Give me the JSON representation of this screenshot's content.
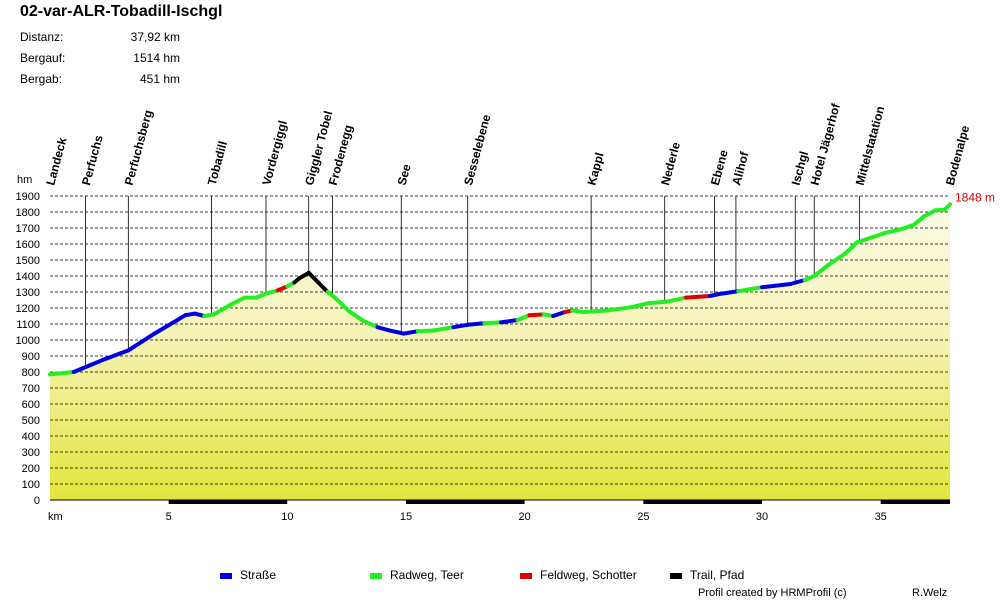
{
  "title": "02-var-ALR-Tobadill-Ischgl",
  "stats": [
    {
      "label": "Distanz:",
      "value": "37,92 km"
    },
    {
      "label": "Bergauf:",
      "value": "1514 hm"
    },
    {
      "label": "Bergab:",
      "value": "451 hm"
    }
  ],
  "legend": [
    {
      "label": "Straße",
      "color": "#0000dd"
    },
    {
      "label": "Radweg, Teer",
      "color": "#22ee22"
    },
    {
      "label": "Feldweg, Schotter",
      "color": "#dd0000"
    },
    {
      "label": "Trail, Pfad",
      "color": "#000000"
    }
  ],
  "credits": {
    "left": "Profil created by HRMProfil (c)",
    "right": "R.Welz"
  },
  "chart_data": {
    "type": "area",
    "ylabel": "hm",
    "xlabel": "km",
    "xlim": [
      0,
      37.92
    ],
    "ylim": [
      0,
      1900
    ],
    "x_ticks": [
      5,
      10,
      15,
      20,
      25,
      30,
      35
    ],
    "y_ticks": [
      0,
      100,
      200,
      300,
      400,
      500,
      600,
      700,
      800,
      900,
      1000,
      1100,
      1200,
      1300,
      1400,
      1500,
      1600,
      1700,
      1800,
      1900
    ],
    "grid": true,
    "end_label": "1848 m",
    "waypoints": [
      {
        "name": "Landeck",
        "km": 0.0
      },
      {
        "name": "Perfuchs",
        "km": 1.5
      },
      {
        "name": "Perfuchsberg",
        "km": 3.3
      },
      {
        "name": "Tobadill",
        "km": 6.8
      },
      {
        "name": "Vordergiggl",
        "km": 9.1
      },
      {
        "name": "Giggler Tobel",
        "km": 10.9
      },
      {
        "name": "Frodenegg",
        "km": 11.9
      },
      {
        "name": "See",
        "km": 14.8
      },
      {
        "name": "Sesselebene",
        "km": 17.6
      },
      {
        "name": "Kappl",
        "km": 22.8
      },
      {
        "name": "Nederle",
        "km": 25.9
      },
      {
        "name": "Ebene",
        "km": 28.0
      },
      {
        "name": "Alihof",
        "km": 28.9
      },
      {
        "name": "Ischgl",
        "km": 31.4
      },
      {
        "name": "Hotel Jägerhof",
        "km": 32.2
      },
      {
        "name": "Mittelstatation",
        "km": 34.1
      },
      {
        "name": "Bodenalpe",
        "km": 37.9
      }
    ],
    "profile": [
      {
        "km": 0.0,
        "alt": 785,
        "s": "road"
      },
      {
        "km": 1.0,
        "alt": 800,
        "s": "bike"
      },
      {
        "km": 2.3,
        "alt": 880,
        "s": "road"
      },
      {
        "km": 3.3,
        "alt": 935,
        "s": "road"
      },
      {
        "km": 4.4,
        "alt": 1040,
        "s": "road"
      },
      {
        "km": 5.2,
        "alt": 1110,
        "s": "road"
      },
      {
        "km": 5.7,
        "alt": 1155,
        "s": "road"
      },
      {
        "km": 6.1,
        "alt": 1165,
        "s": "road"
      },
      {
        "km": 6.5,
        "alt": 1150,
        "s": "road"
      },
      {
        "km": 6.9,
        "alt": 1160,
        "s": "bike"
      },
      {
        "km": 7.6,
        "alt": 1220,
        "s": "bike"
      },
      {
        "km": 8.2,
        "alt": 1265,
        "s": "bike"
      },
      {
        "km": 8.7,
        "alt": 1265,
        "s": "bike"
      },
      {
        "km": 9.1,
        "alt": 1290,
        "s": "bike"
      },
      {
        "km": 9.6,
        "alt": 1310,
        "s": "bike"
      },
      {
        "km": 10.0,
        "alt": 1335,
        "s": "gravel"
      },
      {
        "km": 10.3,
        "alt": 1360,
        "s": "bike"
      },
      {
        "km": 10.5,
        "alt": 1385,
        "s": "trail"
      },
      {
        "km": 10.9,
        "alt": 1420,
        "s": "trail"
      },
      {
        "km": 11.3,
        "alt": 1360,
        "s": "trail"
      },
      {
        "km": 11.7,
        "alt": 1300,
        "s": "trail"
      },
      {
        "km": 12.0,
        "alt": 1265,
        "s": "bike"
      },
      {
        "km": 12.6,
        "alt": 1180,
        "s": "bike"
      },
      {
        "km": 13.2,
        "alt": 1120,
        "s": "bike"
      },
      {
        "km": 13.8,
        "alt": 1080,
        "s": "bike"
      },
      {
        "km": 14.3,
        "alt": 1060,
        "s": "road"
      },
      {
        "km": 14.9,
        "alt": 1040,
        "s": "road"
      },
      {
        "km": 15.5,
        "alt": 1055,
        "s": "road"
      },
      {
        "km": 16.2,
        "alt": 1060,
        "s": "bike"
      },
      {
        "km": 17.0,
        "alt": 1080,
        "s": "bike"
      },
      {
        "km": 17.6,
        "alt": 1095,
        "s": "road"
      },
      {
        "km": 18.3,
        "alt": 1105,
        "s": "road"
      },
      {
        "km": 19.0,
        "alt": 1110,
        "s": "bike"
      },
      {
        "km": 19.7,
        "alt": 1125,
        "s": "road"
      },
      {
        "km": 20.2,
        "alt": 1155,
        "s": "bike"
      },
      {
        "km": 20.8,
        "alt": 1160,
        "s": "gravel"
      },
      {
        "km": 21.2,
        "alt": 1150,
        "s": "bike"
      },
      {
        "km": 21.7,
        "alt": 1175,
        "s": "road"
      },
      {
        "km": 22.0,
        "alt": 1185,
        "s": "gravel"
      },
      {
        "km": 22.5,
        "alt": 1175,
        "s": "bike"
      },
      {
        "km": 23.5,
        "alt": 1185,
        "s": "bike"
      },
      {
        "km": 24.5,
        "alt": 1205,
        "s": "bike"
      },
      {
        "km": 25.2,
        "alt": 1230,
        "s": "bike"
      },
      {
        "km": 26.0,
        "alt": 1240,
        "s": "bike"
      },
      {
        "km": 26.8,
        "alt": 1265,
        "s": "bike"
      },
      {
        "km": 27.8,
        "alt": 1275,
        "s": "gravel"
      },
      {
        "km": 28.3,
        "alt": 1290,
        "s": "road"
      },
      {
        "km": 29.0,
        "alt": 1305,
        "s": "road"
      },
      {
        "km": 30.0,
        "alt": 1330,
        "s": "bike"
      },
      {
        "km": 31.2,
        "alt": 1350,
        "s": "road"
      },
      {
        "km": 31.8,
        "alt": 1375,
        "s": "road"
      },
      {
        "km": 32.2,
        "alt": 1400,
        "s": "bike"
      },
      {
        "km": 32.8,
        "alt": 1470,
        "s": "bike"
      },
      {
        "km": 33.5,
        "alt": 1540,
        "s": "bike"
      },
      {
        "km": 34.0,
        "alt": 1610,
        "s": "bike"
      },
      {
        "km": 34.6,
        "alt": 1640,
        "s": "bike"
      },
      {
        "km": 35.2,
        "alt": 1670,
        "s": "bike"
      },
      {
        "km": 35.8,
        "alt": 1690,
        "s": "bike"
      },
      {
        "km": 36.4,
        "alt": 1720,
        "s": "bike"
      },
      {
        "km": 36.8,
        "alt": 1770,
        "s": "bike"
      },
      {
        "km": 37.3,
        "alt": 1810,
        "s": "bike"
      },
      {
        "km": 37.7,
        "alt": 1815,
        "s": "bike"
      },
      {
        "km": 37.92,
        "alt": 1848,
        "s": "bike"
      }
    ]
  }
}
